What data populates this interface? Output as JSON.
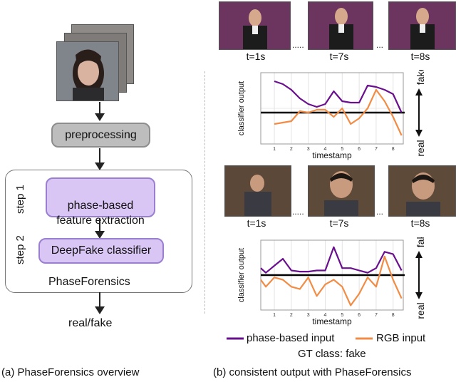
{
  "left": {
    "preprocessing_label": "preprocessing",
    "step1_label": "step 1",
    "step2_label": "step 2",
    "feature_box": "phase-based\nfeature extraction",
    "classifier_box": "DeepFake classifier",
    "group_label": "PhaseForensics",
    "output_label": "real/fake",
    "caption": "(a) PhaseForensics overview"
  },
  "right": {
    "top_times": [
      "t=1s",
      "t=7s",
      "t=8s"
    ],
    "bottom_times": [
      "t=1s",
      "t=7s",
      "t=8s"
    ],
    "caption": "(b) consistent output with PhaseForensics",
    "legend_phase": "phase-based input",
    "legend_rgb": "RGB input",
    "gt_label": "GT class: fake"
  },
  "colors": {
    "phase": "#6a0f8e",
    "rgb": "#f28c45",
    "box_purple_fill": "#d9c6f5",
    "box_purple_border": "#9a7fd0",
    "box_gray": "#bdbdbd"
  },
  "chart_data": [
    {
      "type": "line",
      "xlabel": "timestamp",
      "ylabel": "classifier output",
      "right_top": "fake",
      "right_bottom": "real",
      "x": [
        1,
        2,
        3,
        4,
        5,
        6,
        7,
        8
      ],
      "xticks": [
        "1",
        "2",
        "3",
        "4",
        "5",
        "6",
        "7",
        "8"
      ],
      "ylim": [
        -11,
        14
      ],
      "series": [
        {
          "name": "phase-based input",
          "x": [
            1,
            1.5,
            2,
            2.5,
            3,
            3.5,
            4,
            4.5,
            5,
            5.5,
            6,
            6.5,
            7,
            7.5,
            8,
            8.5
          ],
          "values": [
            11,
            10,
            8,
            5,
            3,
            2,
            3,
            7.5,
            4,
            3.5,
            3.5,
            9.5,
            9,
            8,
            6.5,
            0
          ]
        },
        {
          "name": "RGB input",
          "x": [
            1,
            1.5,
            2,
            2.5,
            3,
            3.5,
            4,
            4.5,
            5,
            5.5,
            6,
            6.5,
            7,
            7.5,
            8,
            8.5
          ],
          "values": [
            -4,
            -3.5,
            -3,
            0.5,
            0,
            1,
            1,
            -1.5,
            1.5,
            -4,
            -2,
            1.5,
            8,
            4,
            -1.5,
            -8
          ]
        }
      ]
    },
    {
      "type": "line",
      "xlabel": "timestamp",
      "ylabel": "classifier output",
      "right_top": "fake",
      "right_bottom": "real",
      "x": [
        1,
        2,
        3,
        4,
        5,
        6,
        7,
        8
      ],
      "xticks": [
        "1",
        "2",
        "3",
        "4",
        "5",
        "6",
        "7",
        "8"
      ],
      "ylim": [
        -15,
        15
      ],
      "series": [
        {
          "name": "phase-based input",
          "x": [
            0.2,
            0.5,
            1,
            1.5,
            2,
            2.5,
            3,
            3.5,
            4,
            4.5,
            5,
            5.5,
            6,
            6.5,
            7,
            7.5,
            8,
            8.5
          ],
          "values": [
            3,
            1,
            4,
            7,
            2,
            1.5,
            1.5,
            2,
            2,
            12,
            3,
            3,
            2,
            1,
            3,
            10,
            9,
            2
          ]
        },
        {
          "name": "RGB input",
          "x": [
            0.2,
            0.5,
            1,
            1.5,
            2,
            2.5,
            3,
            3.5,
            4,
            4.5,
            5,
            5.5,
            6,
            6.5,
            7,
            7.5,
            8,
            8.5
          ],
          "values": [
            -2,
            -5,
            -1,
            -2,
            -5,
            -6,
            -1,
            -9,
            -4,
            -2,
            -5,
            -13,
            -8,
            -1,
            -5,
            8,
            -2,
            -10
          ]
        }
      ]
    }
  ]
}
